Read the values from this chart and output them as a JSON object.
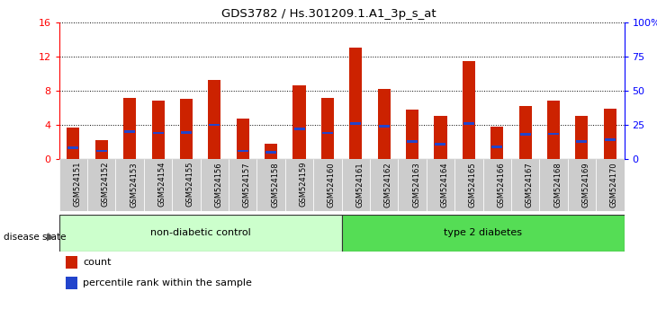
{
  "title": "GDS3782 / Hs.301209.1.A1_3p_s_at",
  "samples": [
    "GSM524151",
    "GSM524152",
    "GSM524153",
    "GSM524154",
    "GSM524155",
    "GSM524156",
    "GSM524157",
    "GSM524158",
    "GSM524159",
    "GSM524160",
    "GSM524161",
    "GSM524162",
    "GSM524163",
    "GSM524164",
    "GSM524165",
    "GSM524166",
    "GSM524167",
    "GSM524168",
    "GSM524169",
    "GSM524170"
  ],
  "counts": [
    3.7,
    2.2,
    7.2,
    6.8,
    7.0,
    9.3,
    4.7,
    1.8,
    8.6,
    7.1,
    13.0,
    8.2,
    5.8,
    5.0,
    11.5,
    3.8,
    6.2,
    6.8,
    5.0,
    5.9
  ],
  "percentiles": [
    8.0,
    6.0,
    20.0,
    19.0,
    19.5,
    25.0,
    6.0,
    5.0,
    22.0,
    19.0,
    26.0,
    24.0,
    13.0,
    11.0,
    26.0,
    9.0,
    18.0,
    18.5,
    13.0,
    14.0
  ],
  "bar_color": "#cc2200",
  "pct_color": "#2244cc",
  "ylim_left": [
    0,
    16
  ],
  "ylim_right": [
    0,
    100
  ],
  "yticks_left": [
    0,
    4,
    8,
    12,
    16
  ],
  "yticks_right": [
    0,
    25,
    50,
    75,
    100
  ],
  "group1_label": "non-diabetic control",
  "group2_label": "type 2 diabetes",
  "group1_count": 10,
  "group2_count": 10,
  "group1_color": "#ccffcc",
  "group2_color": "#55dd55",
  "legend_count_label": "count",
  "legend_pct_label": "percentile rank within the sample",
  "disease_state_label": "disease state",
  "tick_bg_color": "#cccccc",
  "spine_color": "#000000"
}
